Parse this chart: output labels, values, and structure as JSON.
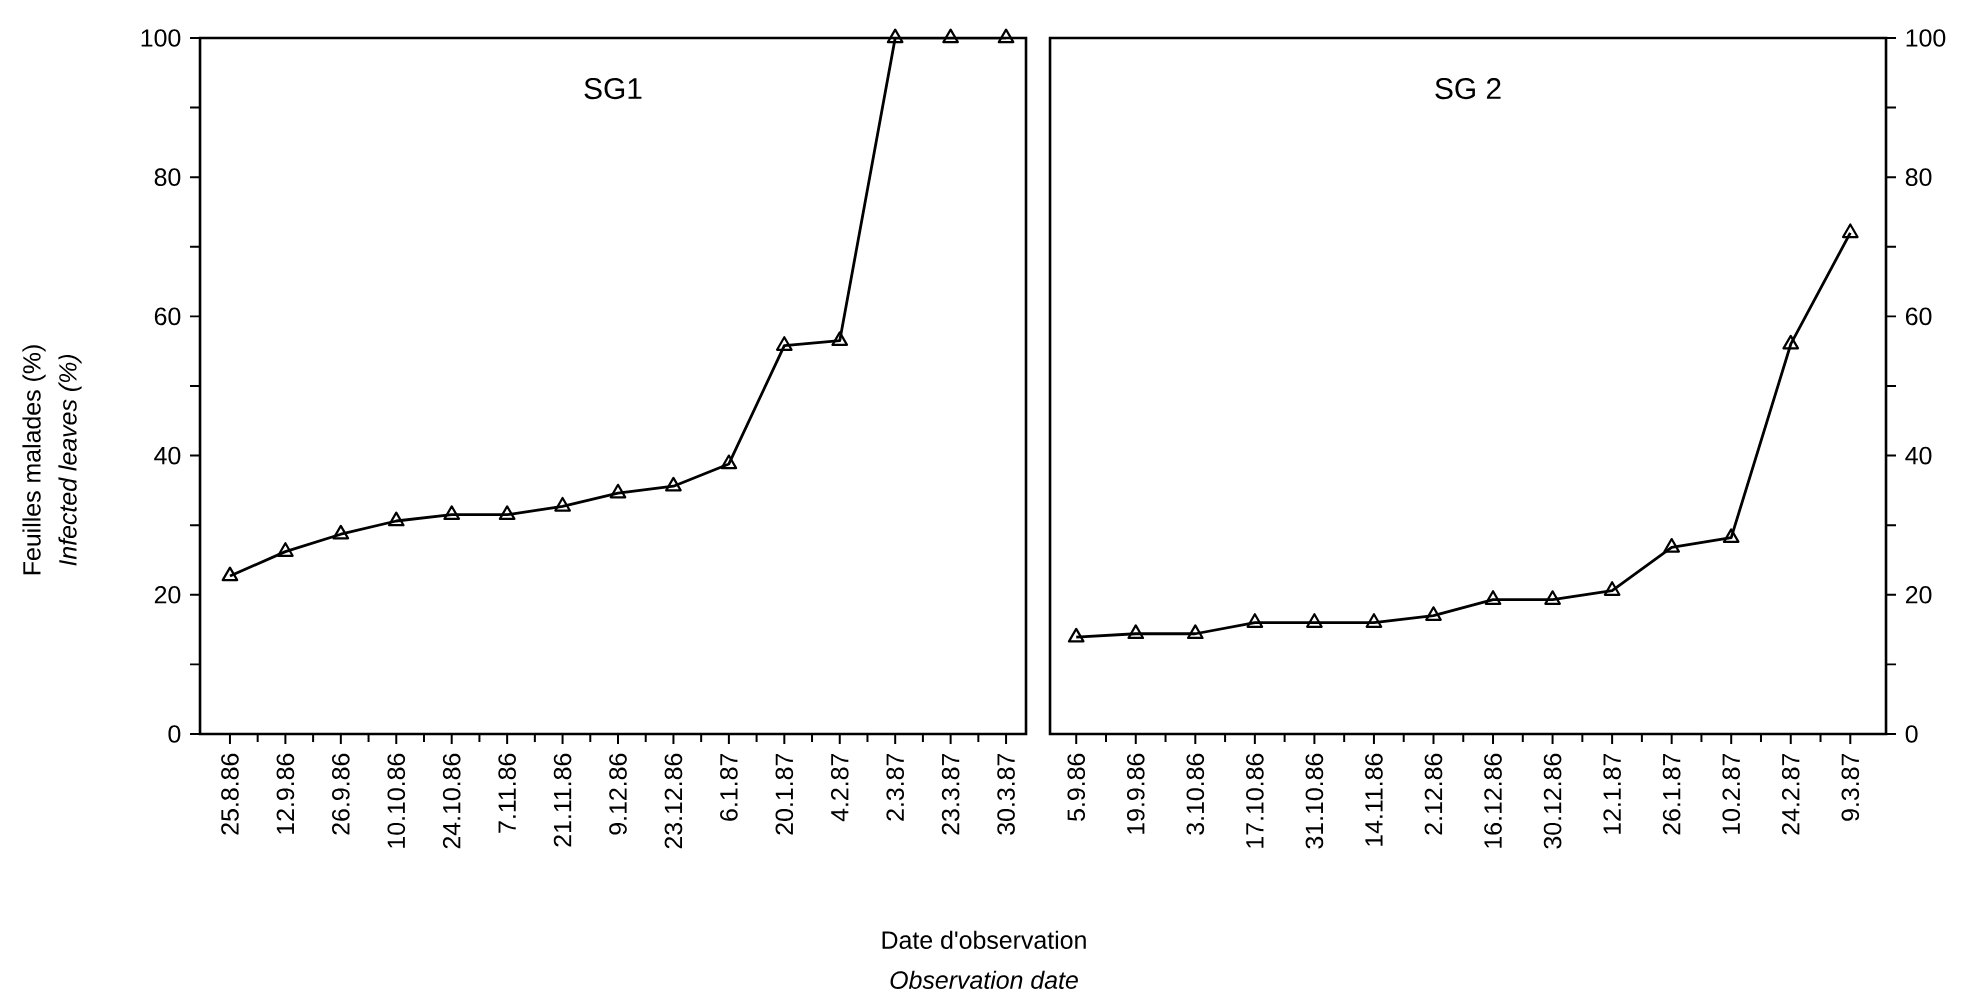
{
  "chart_data": [
    {
      "type": "line",
      "title": "SG1",
      "ylabel": "Feuilles malades (%)",
      "xlabel": "Date d'observation",
      "annotations": [
        "Infected leaves (%)",
        "Observation date"
      ],
      "categories": [
        "25.8.86",
        "12.9.86",
        "26.9.86",
        "10.10.86",
        "24.10.86",
        "7.11.86",
        "21.11.86",
        "9.12.86",
        "23.12.86",
        "6.1.87",
        "20.1.87",
        "4.2.87",
        "2.3.87",
        "23.3.87",
        "30.3.87"
      ],
      "series": [
        {
          "color": "#000000",
          "values": [
            22.7,
            26.2,
            28.7,
            30.6,
            31.5,
            31.5,
            32.7,
            34.6,
            35.6,
            38.8,
            55.8,
            56.5,
            100,
            100,
            100
          ]
        }
      ],
      "ylim": [
        0,
        100
      ],
      "yticks": [
        0,
        {
          "value": 10,
          "label": null
        },
        20,
        {
          "value": 30,
          "label": null
        },
        40,
        {
          "value": 50,
          "label": null
        },
        60,
        {
          "value": 70,
          "label": null
        },
        80,
        {
          "value": 90,
          "label": null
        },
        100
      ],
      "marker": "triangle",
      "line_style": "solid",
      "grid": false
    },
    {
      "type": "line",
      "title": "SG 2",
      "categories": [
        "5.9.86",
        "19.9.86",
        "3.10.86",
        "17.10.86",
        "31.10.86",
        "14.11.86",
        "2.12.86",
        "16.12.86",
        "30.12.86",
        "12.1.87",
        "26.1.87",
        "10.2.87",
        "24.2.87",
        "9.3.87"
      ],
      "series": [
        {
          "color": "#000000",
          "values": [
            13.9,
            14.4,
            14.4,
            16,
            16,
            16,
            17,
            19.3,
            19.3,
            20.6,
            26.8,
            28.2,
            56,
            72
          ]
        }
      ],
      "ylim": [
        0,
        100
      ],
      "yticks": [
        0,
        {
          "value": 10,
          "label": null
        },
        20,
        {
          "value": 30,
          "label": null
        },
        40,
        {
          "value": 50,
          "label": null
        },
        60,
        {
          "value": 70,
          "label": null
        },
        80,
        {
          "value": 90,
          "label": null
        },
        100
      ],
      "marker": "triangle",
      "line_style": "solid",
      "grid": false
    }
  ]
}
